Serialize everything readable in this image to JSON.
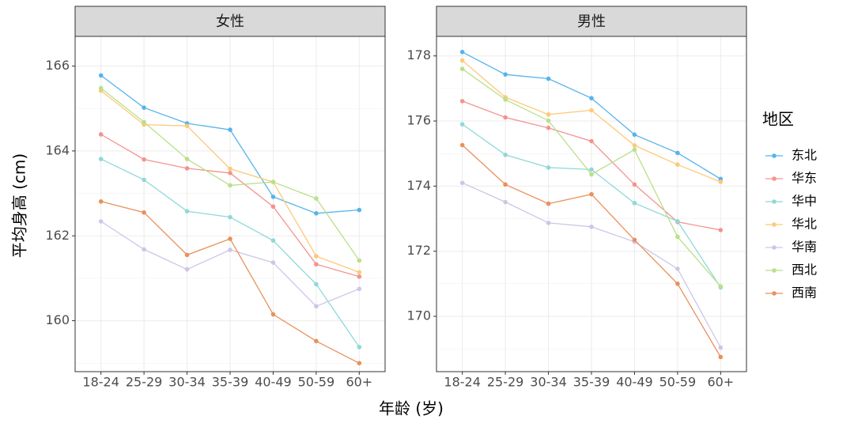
{
  "chart_data": {
    "type": "line",
    "xlabel": "年龄 (岁)",
    "ylabel": "平均身高 (cm)",
    "categories": [
      "18-24",
      "25-29",
      "30-34",
      "35-39",
      "40-49",
      "50-59",
      "60+"
    ],
    "legend": {
      "title": "地区",
      "position": "right"
    },
    "grid": true,
    "colors": {
      "东北": "#56B4E9",
      "华东": "#F3948F",
      "华中": "#8FD8D8",
      "华北": "#FDC97A",
      "华南": "#CFC5E8",
      "西北": "#B9E08A",
      "西南": "#E8915C"
    },
    "panels": [
      {
        "title": "女性",
        "ylim": [
          158.8,
          166.7
        ],
        "yticks": [
          160,
          162,
          164,
          166
        ],
        "series": [
          {
            "name": "东北",
            "values": [
              165.78,
              165.02,
              164.65,
              164.5,
              162.92,
              162.53,
              162.61
            ]
          },
          {
            "name": "华东",
            "values": [
              164.39,
              163.8,
              163.59,
              163.48,
              162.69,
              161.33,
              161.04
            ]
          },
          {
            "name": "华中",
            "values": [
              163.81,
              163.32,
              162.58,
              162.44,
              161.89,
              160.86,
              159.38
            ]
          },
          {
            "name": "华北",
            "values": [
              165.42,
              164.62,
              164.59,
              163.58,
              163.27,
              161.52,
              161.14
            ]
          },
          {
            "name": "华南",
            "values": [
              162.34,
              161.68,
              161.21,
              161.67,
              161.37,
              160.34,
              160.75
            ]
          },
          {
            "name": "西北",
            "values": [
              165.48,
              164.68,
              163.81,
              163.19,
              163.27,
              162.88,
              161.42
            ]
          },
          {
            "name": "西南",
            "values": [
              162.81,
              162.55,
              161.55,
              161.93,
              160.15,
              159.52,
              159.0
            ]
          }
        ]
      },
      {
        "title": "男性",
        "ylim": [
          168.3,
          178.6
        ],
        "yticks": [
          170,
          172,
          174,
          176,
          178
        ],
        "series": [
          {
            "name": "东北",
            "values": [
              178.12,
              177.43,
              177.3,
              176.7,
              175.58,
              175.02,
              174.22
            ]
          },
          {
            "name": "华东",
            "values": [
              176.61,
              176.11,
              175.79,
              175.38,
              174.05,
              172.9,
              172.65
            ]
          },
          {
            "name": "华中",
            "values": [
              175.9,
              174.96,
              174.57,
              174.51,
              173.48,
              172.92,
              170.89
            ]
          },
          {
            "name": "华北",
            "values": [
              177.86,
              176.73,
              176.2,
              176.33,
              175.25,
              174.66,
              174.13
            ]
          },
          {
            "name": "华南",
            "values": [
              174.1,
              173.51,
              172.87,
              172.75,
              172.29,
              171.46,
              169.04
            ]
          },
          {
            "name": "西北",
            "values": [
              177.6,
              176.66,
              176.01,
              174.36,
              175.12,
              172.44,
              170.92
            ]
          },
          {
            "name": "西南",
            "values": [
              175.26,
              174.05,
              173.46,
              173.75,
              172.35,
              171.0,
              168.75
            ]
          }
        ]
      }
    ]
  }
}
